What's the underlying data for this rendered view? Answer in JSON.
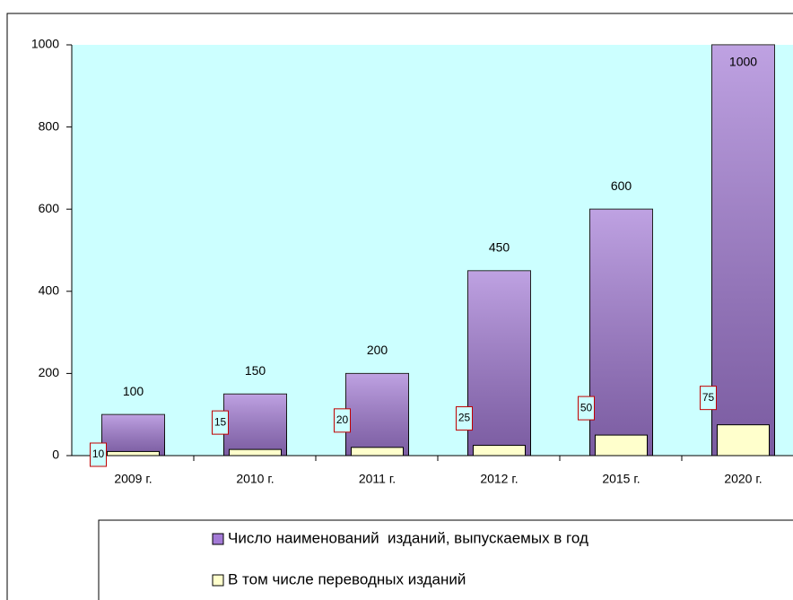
{
  "chart_data": {
    "type": "bar",
    "categories": [
      "2009 г.",
      "2010 г.",
      "2011 г.",
      "2012 г.",
      "2015 г.",
      "2020 г."
    ],
    "series": [
      {
        "name": "Число наименований  изданий, выпускаемых в год",
        "color": "#a37ad6",
        "values": [
          100,
          150,
          200,
          450,
          600,
          1000
        ]
      },
      {
        "name": "В том числе переводных изданий",
        "color": "#ffffcc",
        "values": [
          10,
          15,
          20,
          25,
          50,
          75
        ]
      }
    ],
    "ylim": [
      0,
      1000
    ],
    "yticks": [
      0,
      200,
      400,
      600,
      800,
      1000
    ],
    "grid": false
  }
}
